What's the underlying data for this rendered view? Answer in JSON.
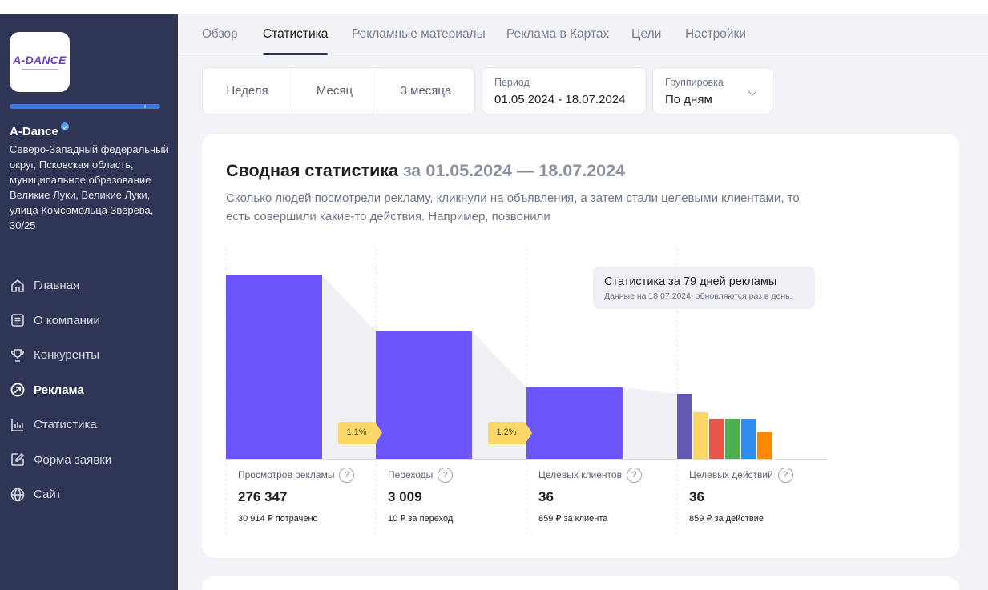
{
  "company": {
    "logo_text": "A-DANCE",
    "name": "A-Dance",
    "address": "Северо-Западный федеральный округ, Псковская область, муниципальное образование Великие Луки, Великие Луки, улица Комсомольца Зверева, 30/25"
  },
  "sidebar": {
    "items": [
      {
        "label": "Главная",
        "icon": "home-icon"
      },
      {
        "label": "О компании",
        "icon": "document-icon"
      },
      {
        "label": "Конкуренты",
        "icon": "trophy-icon"
      },
      {
        "label": "Реклама",
        "icon": "ad-arrow-icon",
        "active": true
      },
      {
        "label": "Статистика",
        "icon": "bar-chart-icon"
      },
      {
        "label": "Форма заявки",
        "icon": "edit-form-icon"
      },
      {
        "label": "Сайт",
        "icon": "globe-icon"
      }
    ]
  },
  "tabs": [
    {
      "label": "Обзор"
    },
    {
      "label": "Статистика",
      "active": true
    },
    {
      "label": "Рекламные материалы"
    },
    {
      "label": "Реклама в Картах"
    },
    {
      "label": "Цели"
    },
    {
      "label": "Настройки"
    }
  ],
  "period_buttons": [
    "Неделя",
    "Месяц",
    "3 месяца"
  ],
  "period_field": {
    "label": "Период",
    "value": "01.05.2024 - 18.07.2024"
  },
  "grouping_field": {
    "label": "Группировка",
    "value": "По дням"
  },
  "summary": {
    "title": "Сводная статистика",
    "title_period": "за 01.05.2024 — 18.07.2024",
    "description": "Сколько людей посмотрели рекламу, кликнули на объявления, а затем стали целевыми клиентами, то есть совершили какие-то действия. Например, позвонили",
    "tooltip_title": "Статистика за 79 дней рекламы",
    "tooltip_sub": "Данные на 18.07.2024, обновляются раз в день."
  },
  "funnel": {
    "conversions": [
      "1.1%",
      "1.2%"
    ],
    "metrics": [
      {
        "label": "Просмотров рекламы",
        "value": "276 347",
        "sub": "30 914 ₽ потрачено"
      },
      {
        "label": "Переходы",
        "value": "3 009",
        "sub": "10 ₽ за переход"
      },
      {
        "label": "Целевых клиентов",
        "value": "36",
        "sub": "859 ₽ за клиента"
      },
      {
        "label": "Целевых действий",
        "value": "36",
        "sub": "859 ₽ за действие"
      }
    ]
  },
  "colors": {
    "sidebar_bg": "#2f3554",
    "bar_primary": "#6b55fb",
    "badge_bg": "#fcd869",
    "action_segments": [
      "#6459b3",
      "#fdd866",
      "#e8564a",
      "#4caf50",
      "#2f8cf0",
      "#fb8a00"
    ]
  }
}
